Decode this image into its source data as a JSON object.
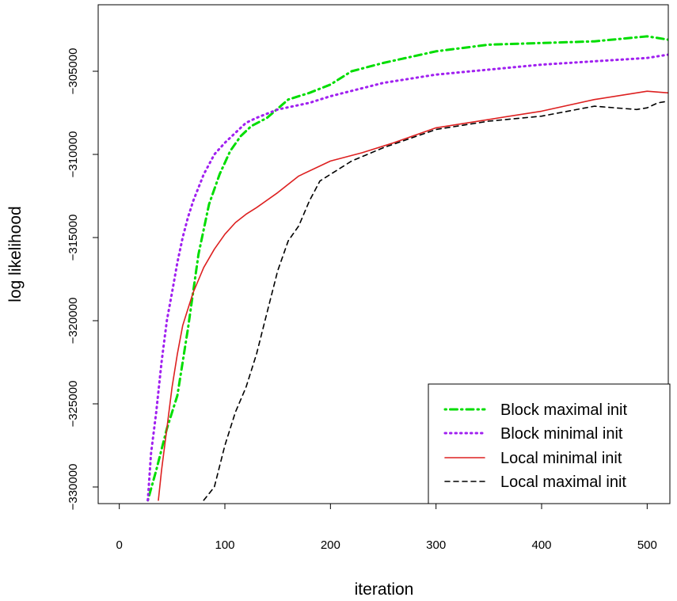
{
  "chart_data": {
    "type": "line",
    "title": "",
    "xlabel": "iteration",
    "ylabel": "log likelihood",
    "xlim": [
      -20,
      520
    ],
    "ylim": [
      -331000,
      -301000
    ],
    "x_ticks": [
      0,
      100,
      200,
      300,
      400,
      500
    ],
    "x_tick_labels": [
      "0",
      "100",
      "200",
      "300",
      "400",
      "500"
    ],
    "y_ticks": [
      -330000,
      -325000,
      -320000,
      -315000,
      -310000,
      -305000
    ],
    "y_tick_labels": [
      "−330000",
      "−325000",
      "−320000",
      "−315000",
      "−310000",
      "−305000"
    ],
    "grid": false,
    "legend_position": "bottom-right",
    "series": [
      {
        "name": "Block maximal init",
        "color": "#00dd00",
        "style": "dotdash",
        "x": [
          27,
          35,
          45,
          55,
          65,
          75,
          85,
          95,
          105,
          115,
          125,
          140,
          160,
          180,
          200,
          220,
          250,
          300,
          350,
          400,
          450,
          500,
          520
        ],
        "y": [
          -330800,
          -329000,
          -326500,
          -324500,
          -320500,
          -316000,
          -313000,
          -311200,
          -309800,
          -308900,
          -308300,
          -307800,
          -306700,
          -306300,
          -305800,
          -305000,
          -304500,
          -303800,
          -303400,
          -303300,
          -303200,
          -302900,
          -303100
        ]
      },
      {
        "name": "Block minimal init",
        "color": "#a020f0",
        "style": "dotted",
        "x": [
          27,
          30,
          35,
          40,
          45,
          50,
          55,
          60,
          65,
          70,
          80,
          90,
          100,
          110,
          120,
          130,
          150,
          180,
          200,
          250,
          300,
          350,
          400,
          450,
          500,
          520
        ],
        "y": [
          -330800,
          -328000,
          -325500,
          -322500,
          -320000,
          -318300,
          -316500,
          -315000,
          -313800,
          -312800,
          -311200,
          -310000,
          -309300,
          -308700,
          -308100,
          -307800,
          -307300,
          -306900,
          -306500,
          -305700,
          -305200,
          -304900,
          -304600,
          -304400,
          -304200,
          -304000
        ]
      },
      {
        "name": "Local minimal init",
        "color": "#dd2020",
        "style": "solid",
        "x": [
          37,
          40,
          45,
          50,
          55,
          60,
          65,
          70,
          80,
          90,
          100,
          110,
          120,
          130,
          150,
          170,
          200,
          230,
          260,
          300,
          350,
          400,
          450,
          500,
          520
        ],
        "y": [
          -330800,
          -329000,
          -326500,
          -324000,
          -322000,
          -320300,
          -319300,
          -318300,
          -316800,
          -315700,
          -314800,
          -314100,
          -313600,
          -313200,
          -312300,
          -311300,
          -310400,
          -309900,
          -309300,
          -308400,
          -307900,
          -307400,
          -306700,
          -306200,
          -306300
        ]
      },
      {
        "name": "Local maximal init",
        "color": "#000000",
        "style": "dashed",
        "x": [
          80,
          90,
          100,
          110,
          120,
          130,
          140,
          150,
          160,
          170,
          180,
          190,
          200,
          220,
          250,
          300,
          350,
          400,
          450,
          490,
          500,
          510,
          520
        ],
        "y": [
          -330800,
          -330000,
          -327500,
          -325500,
          -324000,
          -322000,
          -319500,
          -317000,
          -315200,
          -314300,
          -312800,
          -311600,
          -311200,
          -310400,
          -309600,
          -308500,
          -308000,
          -307700,
          -307100,
          -307300,
          -307200,
          -306900,
          -306800
        ]
      }
    ]
  }
}
